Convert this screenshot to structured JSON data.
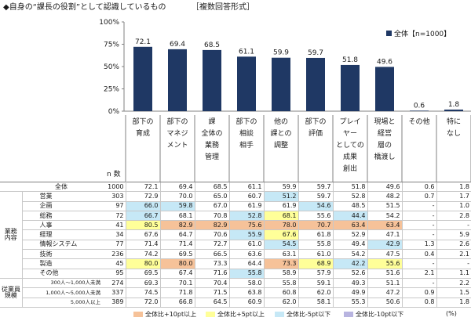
{
  "title": "◆自身の“課長の役割”として認識しているもの",
  "subtitle": "［複数回答形式］",
  "n_label": "n 数",
  "unit": "(%)",
  "chart_data": {
    "type": "bar",
    "categories": [
      [
        "部下の",
        "育成"
      ],
      [
        "部下の",
        "マネジ",
        "メント"
      ],
      [
        "課",
        "全体の",
        "業務",
        "管理"
      ],
      [
        "部下の",
        "相談",
        "相手"
      ],
      [
        "他の",
        "課との",
        "調整"
      ],
      [
        "部下の",
        "評価"
      ],
      [
        "プレイ",
        "ヤー",
        "としての",
        "成果",
        "創出"
      ],
      [
        "現場と",
        "経営",
        "層の",
        "橋渡し"
      ],
      [
        "その他"
      ],
      [
        "特に",
        "なし"
      ]
    ],
    "series": [
      {
        "name": "全体【n=1000】",
        "values": [
          72.1,
          69.4,
          68.5,
          61.1,
          59.9,
          59.7,
          51.8,
          49.6,
          0.6,
          1.8
        ],
        "color": "#1f3864"
      }
    ],
    "ylim": [
      0,
      100
    ],
    "yticks": [
      "0%",
      "25%",
      "50%",
      "75%",
      "100%"
    ],
    "legend_position": "top-right",
    "grid": false
  },
  "table": {
    "rows": [
      {
        "group": "",
        "label": "全体",
        "n": "1000",
        "values": [
          "72.1",
          "69.4",
          "68.5",
          "61.1",
          "59.9",
          "59.7",
          "51.8",
          "49.6",
          "0.6",
          "1.8"
        ],
        "hl": [
          "",
          "",
          "",
          "",
          "",
          "",
          "",
          "",
          "",
          ""
        ]
      },
      {
        "group": "業務\n内容",
        "label": "営業",
        "n": "303",
        "values": [
          "72.9",
          "70.0",
          "65.0",
          "60.7",
          "51.2",
          "59.7",
          "52.8",
          "48.2",
          "0.7",
          "1.7"
        ],
        "hl": [
          "",
          "",
          "",
          "",
          "b",
          "",
          "",
          "",
          "",
          ""
        ]
      },
      {
        "group": "",
        "label": "企画",
        "n": "97",
        "values": [
          "66.0",
          "59.8",
          "67.0",
          "61.9",
          "61.9",
          "54.6",
          "48.5",
          "51.5",
          "-",
          "1.0"
        ],
        "hl": [
          "b",
          "b",
          "",
          "",
          "",
          "b",
          "",
          "",
          "",
          ""
        ]
      },
      {
        "group": "",
        "label": "総務",
        "n": "72",
        "values": [
          "66.7",
          "68.1",
          "70.8",
          "52.8",
          "68.1",
          "55.6",
          "44.4",
          "54.2",
          "-",
          "2.8"
        ],
        "hl": [
          "b",
          "",
          "",
          "b",
          "y",
          "",
          "b",
          "",
          "",
          ""
        ]
      },
      {
        "group": "",
        "label": "人事",
        "n": "41",
        "values": [
          "80.5",
          "82.9",
          "82.9",
          "75.6",
          "78.0",
          "70.7",
          "63.4",
          "63.4",
          "-",
          "-"
        ],
        "hl": [
          "y",
          "o",
          "o",
          "o",
          "o",
          "o",
          "o",
          "o",
          "",
          ""
        ]
      },
      {
        "group": "",
        "label": "経理",
        "n": "34",
        "values": [
          "67.6",
          "64.7",
          "70.6",
          "55.9",
          "67.6",
          "61.8",
          "52.9",
          "47.1",
          "-",
          "5.9"
        ],
        "hl": [
          "",
          "",
          "",
          "b",
          "y",
          "",
          "",
          "",
          "",
          ""
        ]
      },
      {
        "group": "",
        "label": "情報システム",
        "n": "77",
        "values": [
          "71.4",
          "71.4",
          "72.7",
          "61.0",
          "54.5",
          "55.8",
          "49.4",
          "42.9",
          "1.3",
          "2.6"
        ],
        "hl": [
          "",
          "",
          "",
          "",
          "b",
          "",
          "",
          "b",
          "",
          ""
        ]
      },
      {
        "group": "",
        "label": "技術",
        "n": "236",
        "values": [
          "74.2",
          "69.5",
          "66.5",
          "63.6",
          "63.1",
          "61.0",
          "54.2",
          "47.5",
          "0.4",
          "2.1"
        ],
        "hl": [
          "",
          "",
          "",
          "",
          "",
          "",
          "",
          "",
          "",
          ""
        ]
      },
      {
        "group": "",
        "label": "製造",
        "n": "45",
        "values": [
          "80.0",
          "80.0",
          "73.3",
          "64.4",
          "73.3",
          "68.9",
          "42.2",
          "55.6",
          "-",
          "-"
        ],
        "hl": [
          "y",
          "o",
          "",
          "",
          "o",
          "y",
          "b",
          "y",
          "",
          ""
        ]
      },
      {
        "group": "",
        "label": "その他",
        "n": "95",
        "values": [
          "69.5",
          "67.4",
          "71.6",
          "55.8",
          "58.9",
          "57.9",
          "52.6",
          "51.6",
          "2.1",
          "1.1"
        ],
        "hl": [
          "",
          "",
          "",
          "b",
          "",
          "",
          "",
          "",
          "",
          ""
        ]
      },
      {
        "group": "従業員\n規模",
        "label": "300人～1,000人未満",
        "n": "274",
        "values": [
          "69.3",
          "70.1",
          "70.4",
          "58.0",
          "55.8",
          "59.1",
          "49.3",
          "51.1",
          "-",
          "2.2"
        ],
        "hl": [
          "",
          "",
          "",
          "",
          "",
          "",
          "",
          "",
          "",
          ""
        ]
      },
      {
        "group": "",
        "label": "1,000人～5,000人未満",
        "n": "337",
        "values": [
          "74.5",
          "71.8",
          "71.5",
          "63.8",
          "60.8",
          "62.0",
          "49.9",
          "47.2",
          "0.9",
          "1.5"
        ],
        "hl": [
          "",
          "",
          "",
          "",
          "",
          "",
          "",
          "",
          "",
          ""
        ]
      },
      {
        "group": "",
        "label": "5,000人以上",
        "n": "389",
        "values": [
          "72.0",
          "66.8",
          "64.5",
          "60.9",
          "62.0",
          "58.1",
          "55.3",
          "50.6",
          "0.8",
          "1.8"
        ],
        "hl": [
          "",
          "",
          "",
          "",
          "",
          "",
          "",
          "",
          "",
          ""
        ]
      }
    ]
  },
  "legend_items": [
    {
      "label": "全体比+10pt以上",
      "color": "#f6c299"
    },
    {
      "label": "全体比+5pt以上",
      "color": "#ffff99"
    },
    {
      "label": "全体比-5pt以下",
      "color": "#c6e8f6"
    },
    {
      "label": "全体比-10pt以下",
      "color": "#b8b4e0"
    }
  ]
}
